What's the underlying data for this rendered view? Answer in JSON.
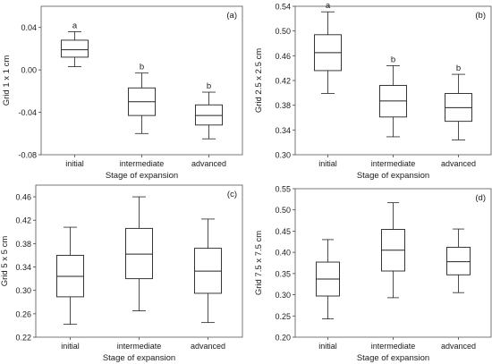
{
  "figure_bg": "#ffffff",
  "stroke_color": "#222222",
  "chart_data": [
    {
      "type": "boxplot",
      "panel_label": "(a)",
      "xlabel": "Stage of expansion",
      "ylabel": "Grid 1 x 1 cm",
      "ylim": [
        -0.08,
        0.06
      ],
      "yticks": [
        -0.08,
        -0.04,
        0.0,
        0.04
      ],
      "ytick_labels": [
        "-0.08",
        "-0.04",
        "0.00",
        "0.04"
      ],
      "categories": [
        "initial",
        "intermediate",
        "advanced"
      ],
      "boxes": [
        {
          "min": 0.003,
          "q1": 0.012,
          "median": 0.019,
          "q3": 0.028,
          "max": 0.036
        },
        {
          "min": -0.06,
          "q1": -0.043,
          "median": -0.03,
          "q3": -0.017,
          "max": -0.003
        },
        {
          "min": -0.065,
          "q1": -0.052,
          "median": -0.043,
          "q3": -0.033,
          "max": -0.021
        }
      ],
      "letters": [
        "a",
        "b",
        "b"
      ]
    },
    {
      "type": "boxplot",
      "panel_label": "(b)",
      "xlabel": "Stage of expansion",
      "ylabel": "Grid 2.5 x 2.5 cm",
      "ylim": [
        0.3,
        0.54
      ],
      "yticks": [
        0.3,
        0.34,
        0.38,
        0.42,
        0.46,
        0.5,
        0.54
      ],
      "ytick_labels": [
        "0.30",
        "0.34",
        "0.38",
        "0.42",
        "0.46",
        "0.50",
        "0.54"
      ],
      "categories": [
        "initial",
        "intermediate",
        "advanced"
      ],
      "boxes": [
        {
          "min": 0.399,
          "q1": 0.436,
          "median": 0.465,
          "q3": 0.494,
          "max": 0.531
        },
        {
          "min": 0.329,
          "q1": 0.361,
          "median": 0.387,
          "q3": 0.412,
          "max": 0.444
        },
        {
          "min": 0.324,
          "q1": 0.354,
          "median": 0.376,
          "q3": 0.399,
          "max": 0.43
        }
      ],
      "letters": [
        "a",
        "b",
        "b"
      ]
    },
    {
      "type": "boxplot",
      "panel_label": "(c)",
      "xlabel": "Stage of expansion",
      "ylabel": "Grid 5 x 5 cm",
      "ylim": [
        0.22,
        0.48
      ],
      "yticks": [
        0.22,
        0.26,
        0.3,
        0.34,
        0.38,
        0.42,
        0.46
      ],
      "ytick_labels": [
        "0.22",
        "0.26",
        "0.30",
        "0.34",
        "0.38",
        "0.42",
        "0.46"
      ],
      "categories": [
        "initial",
        "intermediate",
        "advanced"
      ],
      "boxes": [
        {
          "min": 0.242,
          "q1": 0.289,
          "median": 0.324,
          "q3": 0.36,
          "max": 0.408
        },
        {
          "min": 0.265,
          "q1": 0.32,
          "median": 0.362,
          "q3": 0.406,
          "max": 0.46
        },
        {
          "min": 0.245,
          "q1": 0.295,
          "median": 0.333,
          "q3": 0.372,
          "max": 0.422
        }
      ],
      "letters": [
        "",
        "",
        ""
      ]
    },
    {
      "type": "boxplot",
      "panel_label": "(d)",
      "xlabel": "Stage of expansion",
      "ylabel": "Grid 7.5 x 7.5 cm",
      "ylim": [
        0.2,
        0.55
      ],
      "yticks": [
        0.2,
        0.25,
        0.3,
        0.35,
        0.4,
        0.45,
        0.5,
        0.55
      ],
      "ytick_labels": [
        "0.20",
        "0.25",
        "0.30",
        "0.35",
        "0.40",
        "0.45",
        "0.50",
        "0.55"
      ],
      "categories": [
        "initial",
        "intermediate",
        "advanced"
      ],
      "boxes": [
        {
          "min": 0.243,
          "q1": 0.297,
          "median": 0.337,
          "q3": 0.377,
          "max": 0.43
        },
        {
          "min": 0.293,
          "q1": 0.356,
          "median": 0.405,
          "q3": 0.454,
          "max": 0.517
        },
        {
          "min": 0.305,
          "q1": 0.347,
          "median": 0.378,
          "q3": 0.412,
          "max": 0.455
        }
      ],
      "letters": [
        "",
        "",
        ""
      ]
    }
  ]
}
